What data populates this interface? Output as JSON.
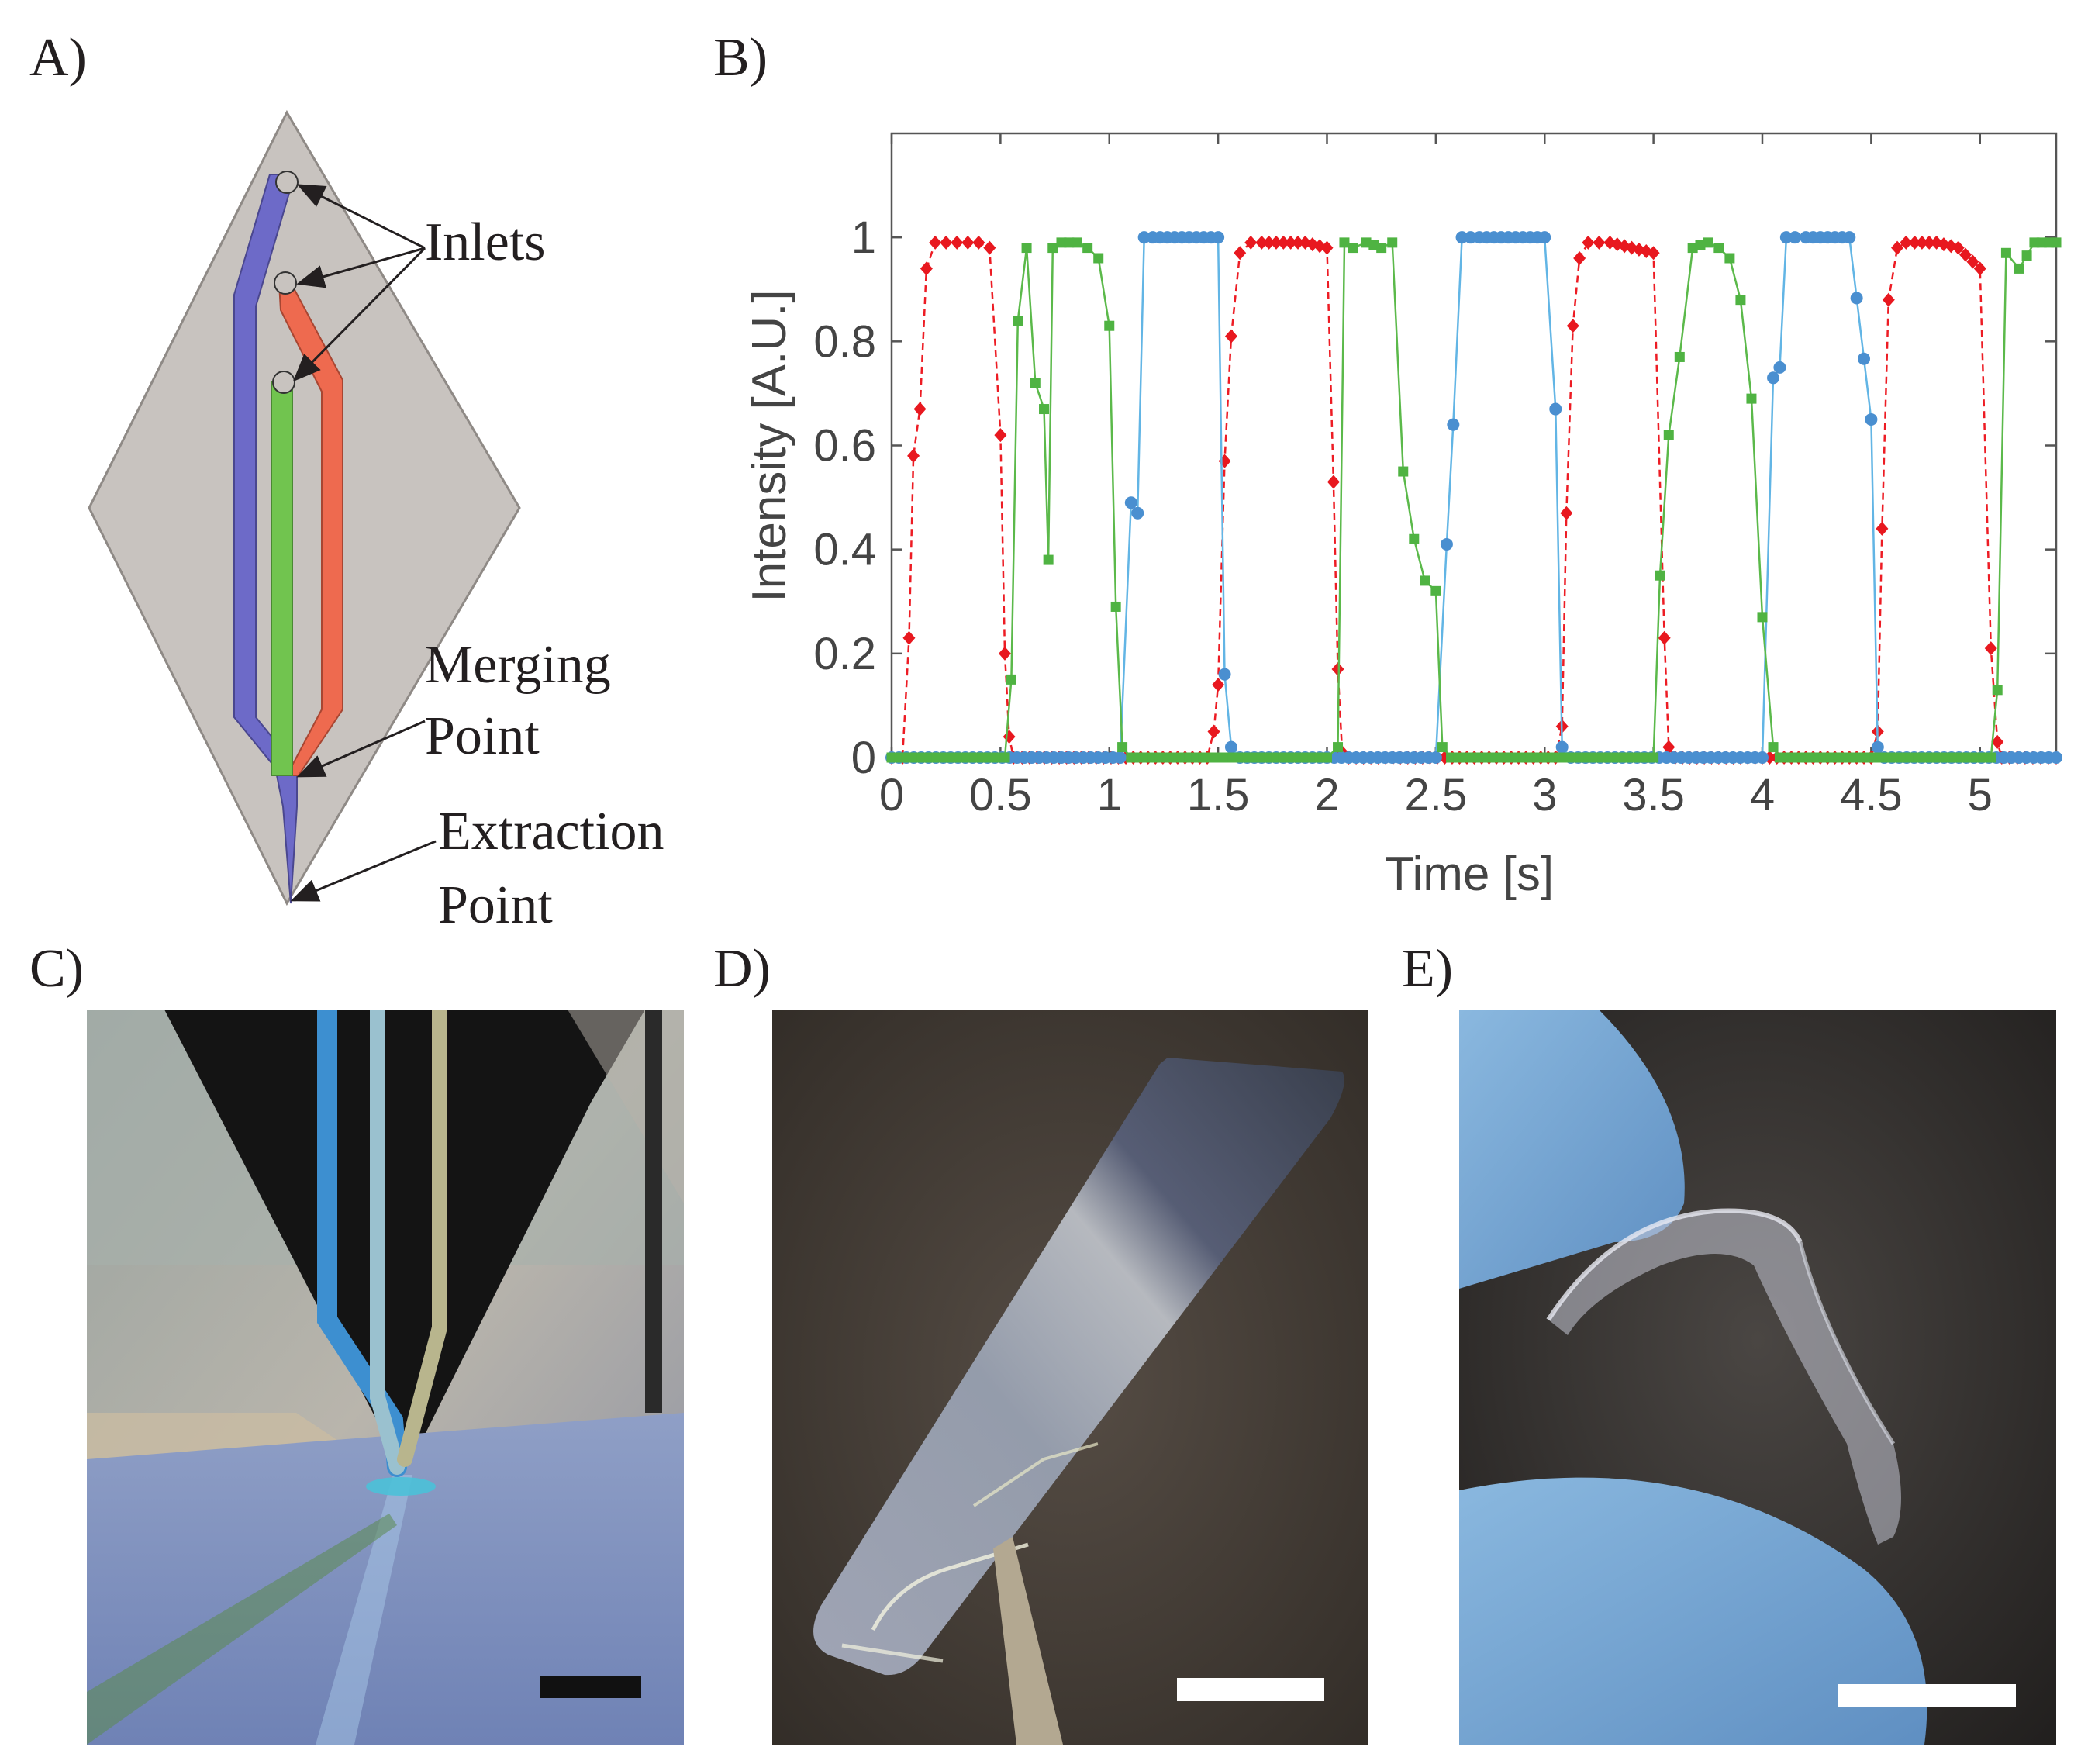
{
  "panels": {
    "a": {
      "label": "A)"
    },
    "b": {
      "label": "B)"
    },
    "c": {
      "label": "C)"
    },
    "d": {
      "label": "D)"
    },
    "e": {
      "label": "E)"
    }
  },
  "diagram": {
    "inlets": "Inlets",
    "merging_1": "Merging",
    "merging_2": "Point",
    "extraction_1": "Extraction",
    "extraction_2": "Point",
    "colors": {
      "body": "#c8c3bf",
      "blue": "#6d6ac8",
      "red": "#ee6a4f",
      "green": "#71c44f"
    }
  },
  "chart_data": {
    "type": "line",
    "xlabel": "Time [s]",
    "ylabel": "Intensity [A.U.]",
    "xlim": [
      0,
      5.35
    ],
    "ylim": [
      0,
      1.2
    ],
    "xticks": [
      "0",
      "0.5",
      "1",
      "1.5",
      "2",
      "2.5",
      "3",
      "3.5",
      "4",
      "4.5",
      "5"
    ],
    "yticks": [
      "0",
      "0.2",
      "0.4",
      "0.6",
      "0.8",
      "1"
    ],
    "grid": false,
    "series": [
      {
        "color": "#ed1c24",
        "marker": "diamond",
        "style": "dashed",
        "x": [
          0,
          0.05,
          0.08,
          0.1,
          0.13,
          0.16,
          0.2,
          0.25,
          0.3,
          0.35,
          0.4,
          0.45,
          0.5,
          0.52,
          0.54,
          0.56,
          0.6,
          1.45,
          1.48,
          1.5,
          1.53,
          1.56,
          1.6,
          1.65,
          1.7,
          1.8,
          1.9,
          2.0,
          2.03,
          2.05,
          2.07,
          2.1,
          3.05,
          3.08,
          3.1,
          3.13,
          3.16,
          3.2,
          3.25,
          3.3,
          3.4,
          3.5,
          3.55,
          3.57,
          3.6,
          4.5,
          4.53,
          4.55,
          4.58,
          4.62,
          4.66,
          4.7,
          4.8,
          4.9,
          5.0,
          5.05,
          5.08,
          5.1,
          5.35
        ],
        "y": [
          0,
          0,
          0.23,
          0.58,
          0.67,
          0.94,
          0.99,
          0.99,
          0.99,
          0.99,
          0.99,
          0.98,
          0.62,
          0.2,
          0.04,
          0,
          0,
          0,
          0.05,
          0.14,
          0.57,
          0.81,
          0.97,
          0.99,
          0.99,
          0.99,
          0.99,
          0.98,
          0.53,
          0.17,
          0.01,
          0,
          0,
          0.06,
          0.47,
          0.83,
          0.96,
          0.99,
          0.99,
          0.99,
          0.98,
          0.97,
          0.23,
          0.02,
          0,
          0,
          0.05,
          0.44,
          0.88,
          0.98,
          0.99,
          0.99,
          0.99,
          0.98,
          0.94,
          0.21,
          0.03,
          0,
          0
        ]
      },
      {
        "color": "#62b5e5",
        "marker": "circle",
        "style": "solid",
        "x": [
          0,
          1.05,
          1.1,
          1.13,
          1.16,
          1.2,
          1.3,
          1.4,
          1.5,
          1.53,
          1.56,
          1.6,
          2.5,
          2.55,
          2.58,
          2.62,
          2.66,
          2.7,
          2.8,
          2.9,
          3.0,
          3.05,
          3.08,
          3.12,
          4.0,
          4.05,
          4.08,
          4.11,
          4.15,
          4.2,
          4.3,
          4.4,
          4.5,
          4.53,
          4.56,
          5.35
        ],
        "y": [
          0,
          0,
          0.49,
          0.47,
          1.0,
          1.0,
          1.0,
          1.0,
          1.0,
          0.16,
          0.02,
          0,
          0,
          0.41,
          0.64,
          1.0,
          1.0,
          1.0,
          1.0,
          1.0,
          1.0,
          0.67,
          0.02,
          0,
          0,
          0.73,
          0.75,
          1.0,
          1.0,
          1.0,
          1.0,
          1.0,
          0.65,
          0.02,
          0,
          0
        ]
      },
      {
        "color": "#5bb94a",
        "marker": "square",
        "style": "solid",
        "x": [
          0,
          0.52,
          0.55,
          0.58,
          0.62,
          0.66,
          0.7,
          0.72,
          0.74,
          0.78,
          0.85,
          0.9,
          0.95,
          1.0,
          1.03,
          1.06,
          1.1,
          2.0,
          2.05,
          2.08,
          2.12,
          2.18,
          2.25,
          2.3,
          2.35,
          2.4,
          2.45,
          2.5,
          2.53,
          2.57,
          3.5,
          3.53,
          3.57,
          3.62,
          3.68,
          3.75,
          3.8,
          3.85,
          3.9,
          3.95,
          4.0,
          4.05,
          4.08,
          5.05,
          5.08,
          5.12,
          5.18,
          5.25,
          5.35
        ],
        "y": [
          0,
          0,
          0.15,
          0.84,
          0.98,
          0.72,
          0.67,
          0.38,
          0.98,
          0.99,
          0.99,
          0.98,
          0.96,
          0.83,
          0.29,
          0.02,
          0,
          0,
          0.02,
          0.99,
          0.98,
          0.99,
          0.98,
          0.99,
          0.55,
          0.42,
          0.34,
          0.32,
          0.02,
          0,
          0,
          0.35,
          0.62,
          0.77,
          0.98,
          0.99,
          0.98,
          0.96,
          0.88,
          0.69,
          0.27,
          0.02,
          0,
          0,
          0.13,
          0.97,
          0.94,
          0.99,
          0.99
        ]
      }
    ]
  }
}
